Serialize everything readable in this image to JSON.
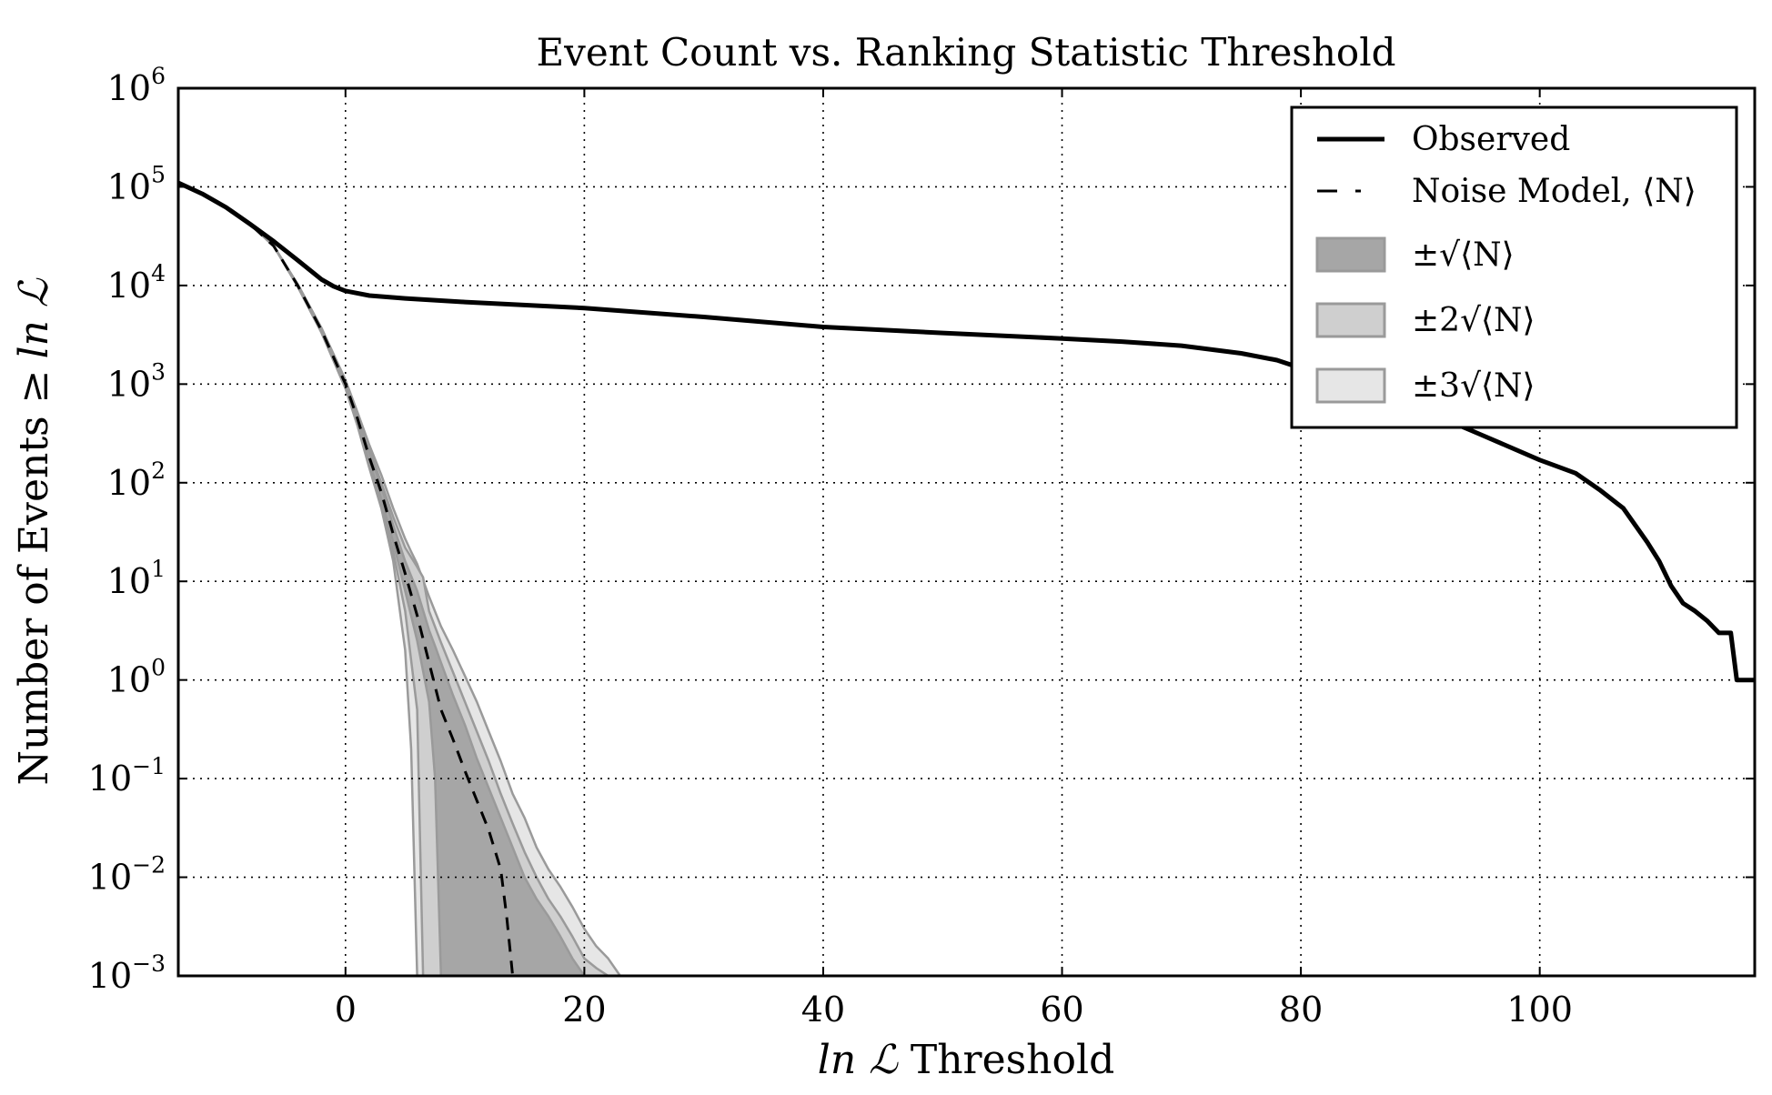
{
  "chart_data": {
    "type": "line",
    "title": "Event Count vs. Ranking Statistic Threshold",
    "xlabel": {
      "math": "ln ℒ",
      "text": "Threshold"
    },
    "ylabel": {
      "text": "Number of Events ≥",
      "math": "ln ℒ"
    },
    "xlim": [
      -14,
      118
    ],
    "ylim": [
      0.001,
      1000000
    ],
    "yscale": "log",
    "grid": true,
    "legend_position": "top-right",
    "x_ticks": [
      {
        "value": 0,
        "label": "0"
      },
      {
        "value": 20,
        "label": "20"
      },
      {
        "value": 40,
        "label": "40"
      },
      {
        "value": 60,
        "label": "60"
      },
      {
        "value": 80,
        "label": "80"
      },
      {
        "value": 100,
        "label": "100"
      }
    ],
    "y_ticks": [
      {
        "value": 0.001,
        "base": "10",
        "exp": "−3"
      },
      {
        "value": 0.01,
        "base": "10",
        "exp": "−2"
      },
      {
        "value": 0.1,
        "base": "10",
        "exp": "−1"
      },
      {
        "value": 1,
        "base": "10",
        "exp": "0"
      },
      {
        "value": 10,
        "base": "10",
        "exp": "1"
      },
      {
        "value": 100,
        "base": "10",
        "exp": "2"
      },
      {
        "value": 1000,
        "base": "10",
        "exp": "3"
      },
      {
        "value": 10000,
        "base": "10",
        "exp": "4"
      },
      {
        "value": 100000,
        "base": "10",
        "exp": "5"
      },
      {
        "value": 1000000,
        "base": "10",
        "exp": "6"
      }
    ],
    "legend": [
      {
        "label": "Observed",
        "style": "solid"
      },
      {
        "label": "Noise Model, ⟨N⟩",
        "style": "dashed"
      },
      {
        "label": "±√⟨N⟩",
        "style": "band1"
      },
      {
        "label": "±2√⟨N⟩",
        "style": "band2"
      },
      {
        "label": "±3√⟨N⟩",
        "style": "band3"
      }
    ],
    "colors": {
      "observed": "#000000",
      "noise": "#000000",
      "band1": "#a6a6a6",
      "band2": "#cfcfcf",
      "band3": "#e6e6e6",
      "band_edge": "#9a9a9a"
    },
    "series": [
      {
        "name": "Observed",
        "x": [
          -14,
          -12,
          -10,
          -8,
          -6,
          -4,
          -2,
          -1,
          0,
          2,
          5,
          10,
          20,
          30,
          40,
          50,
          60,
          65,
          70,
          75,
          78,
          80,
          85,
          90,
          95,
          100,
          103,
          105,
          107,
          109,
          110,
          111,
          112,
          113,
          114,
          115,
          116,
          116.5,
          117,
          118
        ],
        "y": [
          110000,
          85000,
          62000,
          42000,
          28000,
          18000,
          11500,
          9800,
          8800,
          7900,
          7400,
          6800,
          5900,
          4800,
          3800,
          3300,
          2900,
          2700,
          2450,
          2050,
          1750,
          1450,
          900,
          560,
          310,
          170,
          125,
          85,
          55,
          25,
          16,
          9,
          6,
          5,
          4,
          3,
          3,
          1,
          1,
          1
        ]
      },
      {
        "name": "Noise Model, ⟨N⟩",
        "x": [
          -14,
          -12,
          -10,
          -8,
          -6,
          -4,
          -2,
          0,
          1,
          2,
          3,
          4,
          5,
          6,
          7,
          8,
          9,
          10,
          11,
          12,
          13,
          13.5,
          14
        ],
        "y": [
          110000,
          85000,
          62000,
          42000,
          25000,
          10000,
          3500,
          1000,
          450,
          180,
          80,
          30,
          12,
          4.5,
          1.5,
          0.5,
          0.25,
          0.12,
          0.06,
          0.03,
          0.012,
          0.004,
          0.001
        ]
      }
    ],
    "bands": [
      {
        "name": "±3√⟨N⟩",
        "x": [
          -14,
          -12,
          -10,
          -8,
          -6,
          -4,
          -2,
          0,
          1,
          2,
          3,
          4,
          5,
          5.5,
          6,
          7,
          8,
          9,
          10,
          11,
          12,
          13,
          14,
          15,
          16,
          17,
          18,
          19,
          20,
          21,
          22,
          23
        ],
        "lower": [
          110000,
          85000,
          62000,
          42000,
          25000,
          9700,
          3300,
          900,
          380,
          140,
          55,
          16,
          2,
          0.2,
          0.001,
          null,
          null,
          null,
          null,
          null,
          null,
          null,
          null,
          null,
          null,
          null,
          null,
          null,
          null,
          null,
          null,
          null
        ],
        "upper": [
          110000,
          85000,
          62000,
          42000,
          25000,
          10300,
          3700,
          1100,
          520,
          240,
          120,
          55,
          27,
          20,
          15,
          7,
          3.5,
          2,
          1.1,
          0.6,
          0.3,
          0.15,
          0.07,
          0.04,
          0.02,
          0.012,
          0.008,
          0.005,
          0.003,
          0.002,
          0.0015,
          0.001
        ]
      },
      {
        "name": "±2√⟨N⟩",
        "x": [
          -14,
          -12,
          -10,
          -8,
          -6,
          -4,
          -2,
          0,
          1,
          2,
          3,
          4,
          5,
          6,
          6.5,
          7,
          8,
          9,
          10,
          11,
          12,
          13,
          14,
          15,
          16,
          17,
          18,
          19,
          20,
          21,
          22
        ],
        "lower": [
          110000,
          85000,
          62000,
          42000,
          25000,
          9800,
          3400,
          940,
          400,
          150,
          60,
          20,
          5,
          0.5,
          0.001,
          null,
          null,
          null,
          null,
          null,
          null,
          null,
          null,
          null,
          null,
          null,
          null,
          null,
          null,
          null,
          null
        ],
        "upper": [
          110000,
          85000,
          62000,
          42000,
          25000,
          10200,
          3600,
          1060,
          500,
          215,
          100,
          45,
          22,
          14,
          11,
          5,
          2.4,
          1.2,
          0.6,
          0.3,
          0.15,
          0.07,
          0.035,
          0.018,
          0.01,
          0.006,
          0.004,
          0.0025,
          0.0015,
          0.0012,
          0.001
        ]
      },
      {
        "name": "±√⟨N⟩",
        "x": [
          -14,
          -12,
          -10,
          -8,
          -6,
          -4,
          -2,
          0,
          1,
          2,
          3,
          4,
          5,
          6,
          7,
          7.5,
          8,
          9,
          10,
          11,
          12,
          13,
          14,
          15,
          16,
          17,
          18,
          19,
          20
        ],
        "lower": [
          110000,
          85000,
          62000,
          42000,
          25000,
          9900,
          3450,
          970,
          420,
          160,
          68,
          25,
          8,
          2.5,
          0.6,
          0.1,
          0.001,
          null,
          null,
          null,
          null,
          null,
          null,
          null,
          null,
          null,
          null,
          null,
          null
        ],
        "upper": [
          110000,
          85000,
          62000,
          42000,
          25000,
          10100,
          3550,
          1030,
          480,
          200,
          92,
          37,
          16,
          8,
          3.2,
          2.2,
          1.5,
          0.7,
          0.35,
          0.16,
          0.08,
          0.04,
          0.02,
          0.01,
          0.006,
          0.004,
          0.0025,
          0.0015,
          0.001
        ]
      }
    ]
  }
}
